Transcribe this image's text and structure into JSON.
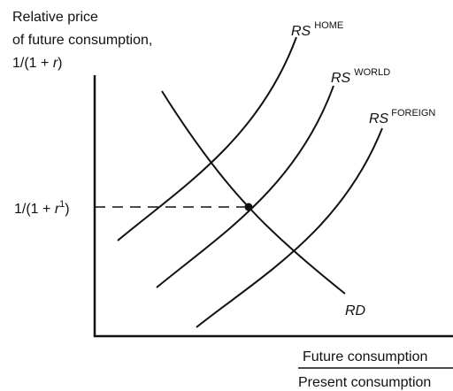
{
  "y_axis_label": {
    "line1": "Relative price",
    "line2": "of future consumption,",
    "line3": [
      "1/(1 + ",
      "r",
      ")"
    ]
  },
  "x_axis_label": {
    "numerator": "Future consumption",
    "denominator": "Present consumption"
  },
  "curves": [
    {
      "label": "RS",
      "superscript": "HOME"
    },
    {
      "label": "RS",
      "superscript": "WORLD"
    },
    {
      "label": "RS",
      "superscript": "FOREIGN"
    },
    {
      "label": "RD"
    }
  ],
  "equilibrium_label": [
    "1/(1 + ",
    "r",
    "1",
    ")"
  ]
}
